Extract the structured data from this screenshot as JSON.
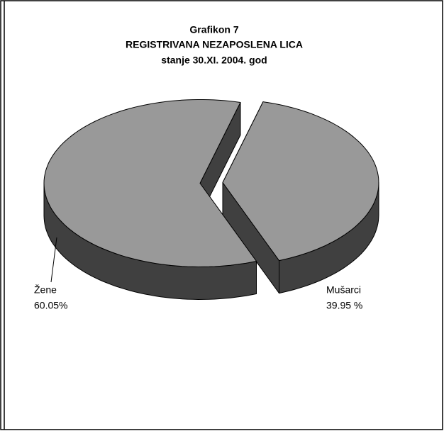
{
  "chart_data": {
    "type": "pie3d",
    "title": [
      "Grafikon 7",
      "REGISTRIVANA NEZAPOSLENA LICA",
      "stanje 30.XI. 2004. god"
    ],
    "categories": [
      "Mušarci",
      "Žene"
    ],
    "values": [
      39.95,
      60.05
    ],
    "value_labels": [
      "39.95 %",
      "60.05%"
    ],
    "colors": {
      "top": "#999999",
      "side": "#404040"
    }
  }
}
